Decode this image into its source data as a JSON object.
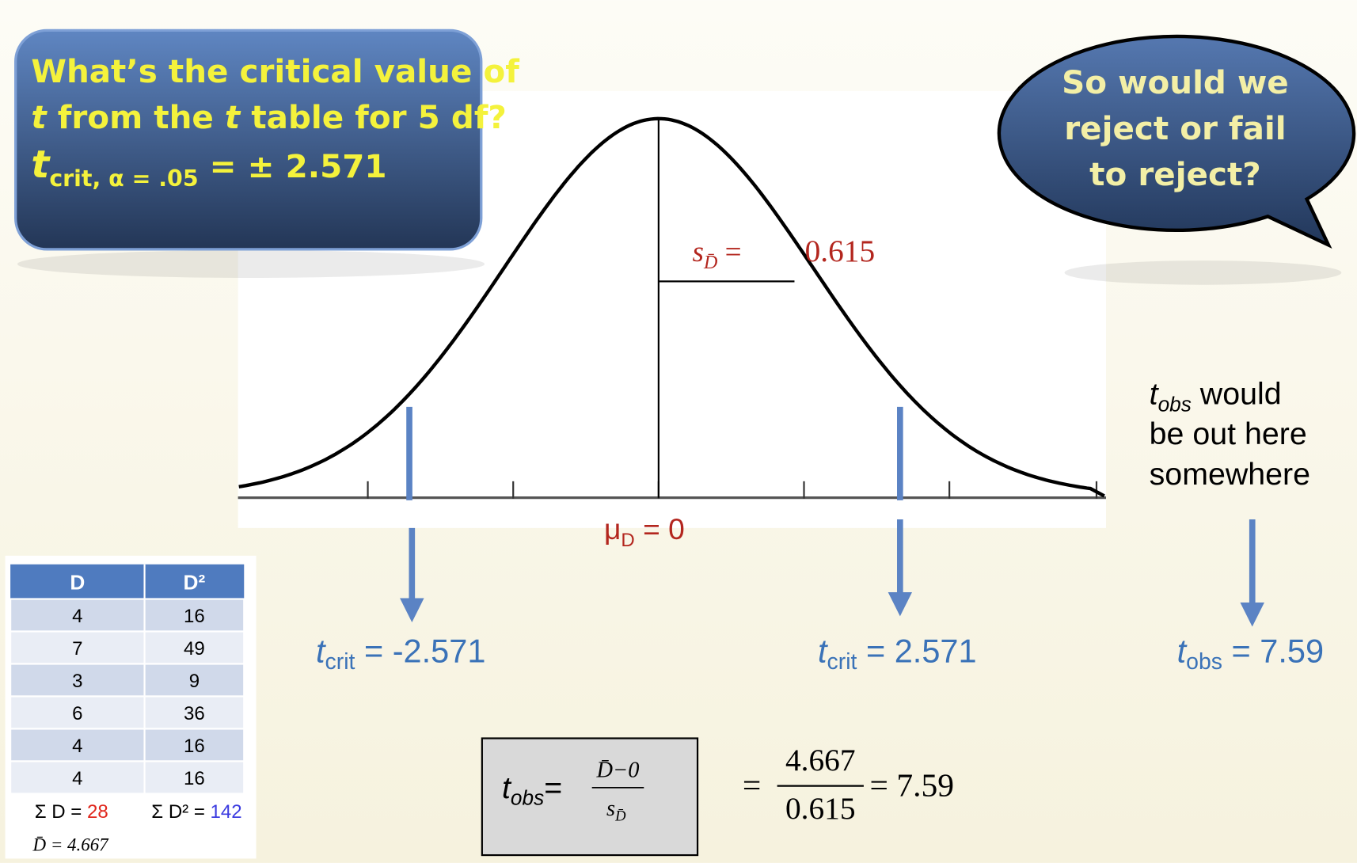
{
  "callout": {
    "line1": "What’s the critical value of",
    "line2": {
      "t1": "t",
      "mid": " from the ",
      "t2": "t",
      "end": " table for 5 df?"
    },
    "line3": {
      "main": "t",
      "sub": "crit, α = .05",
      "rest": " = ± 2.571"
    }
  },
  "bubble": {
    "lines": [
      "So would we",
      "reject or fail",
      "to reject?"
    ]
  },
  "curve": {
    "se_label": {
      "main": "s",
      "sub": "D̄",
      "eq": " =",
      "value": "0.615"
    },
    "mean_label": {
      "main": "μ",
      "sub": "D",
      "rest": " = 0"
    }
  },
  "markers": [
    {
      "main": "t",
      "sub": "crit",
      "rest": " = -2.571"
    },
    {
      "main": "t",
      "sub": "crit",
      "rest": " = 2.571"
    },
    {
      "main": "t",
      "sub": "obs",
      "rest": " = 7.59"
    }
  ],
  "note": {
    "main": "t",
    "sub": "obs",
    "lines": [
      " would",
      "be out here",
      "somewhere"
    ]
  },
  "table": {
    "header": [
      "D",
      "D²"
    ],
    "rows": [
      [
        "4",
        "16"
      ],
      [
        "7",
        "49"
      ],
      [
        "3",
        "9"
      ],
      [
        "6",
        "36"
      ],
      [
        "4",
        "16"
      ],
      [
        "4",
        "16"
      ]
    ],
    "sums": {
      "d_label": "Σ D = ",
      "d_value": "28",
      "d2_label": "Σ D² = ",
      "d2_value": "142"
    },
    "mean": "D̄ = 4.667"
  },
  "formula": {
    "lhs": {
      "main": "t",
      "sub": "obs",
      "eq": "="
    },
    "numerator": "D̄−0",
    "denominator": {
      "main": "s",
      "sub": "D̄"
    },
    "eq1": "=",
    "frac_num": "4.667",
    "frac_den": "0.615",
    "eq2": "= 7.59"
  }
}
